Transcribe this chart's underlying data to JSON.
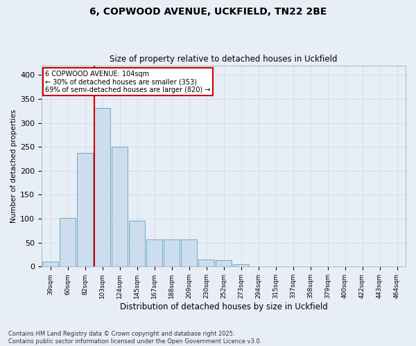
{
  "title1": "6, COPWOOD AVENUE, UCKFIELD, TN22 2BE",
  "title2": "Size of property relative to detached houses in Uckfield",
  "xlabel": "Distribution of detached houses by size in Uckfield",
  "ylabel": "Number of detached properties",
  "bar_labels": [
    "39sqm",
    "60sqm",
    "82sqm",
    "103sqm",
    "124sqm",
    "145sqm",
    "167sqm",
    "188sqm",
    "209sqm",
    "230sqm",
    "252sqm",
    "273sqm",
    "294sqm",
    "315sqm",
    "337sqm",
    "358sqm",
    "379sqm",
    "400sqm",
    "422sqm",
    "443sqm",
    "464sqm"
  ],
  "bar_values": [
    10,
    101,
    237,
    331,
    250,
    96,
    57,
    57,
    57,
    15,
    14,
    5,
    1,
    1,
    1,
    0,
    0,
    0,
    0,
    1,
    1
  ],
  "bar_color": "#ccdded",
  "bar_edge_color": "#6aaac8",
  "grid_color": "#d4dce8",
  "vline_color": "#cc0000",
  "annotation_text": "6 COPWOOD AVENUE: 104sqm\n← 30% of detached houses are smaller (353)\n69% of semi-detached houses are larger (820) →",
  "annotation_box_color": "#ffffff",
  "annotation_border_color": "#cc0000",
  "footer_text": "Contains HM Land Registry data © Crown copyright and database right 2025.\nContains public sector information licensed under the Open Government Licence v3.0.",
  "ylim": [
    0,
    420
  ],
  "yticks": [
    0,
    50,
    100,
    150,
    200,
    250,
    300,
    350,
    400
  ],
  "background_color": "#e8eef5",
  "plot_bg_color": "#e8eef5"
}
